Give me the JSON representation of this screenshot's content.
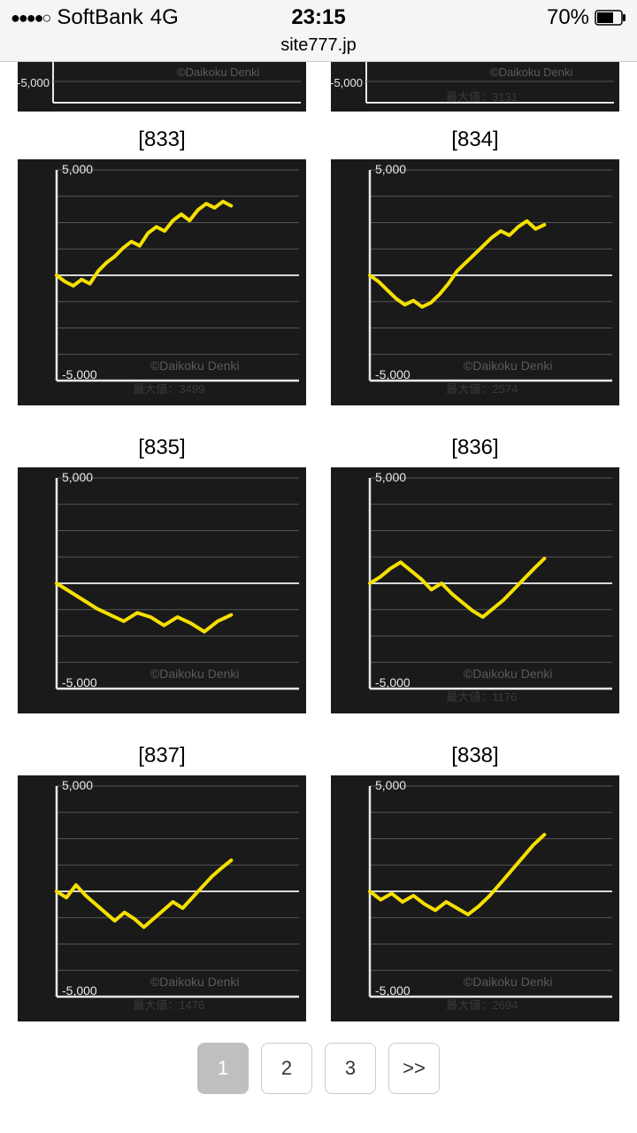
{
  "status_bar": {
    "signal_dots": "●●●●○",
    "carrier": "SoftBank",
    "network": "4G",
    "time": "23:15",
    "battery_pct": "70%"
  },
  "url": "site777.jp",
  "partial_top": {
    "left": {
      "watermark": "©Daikoku Denki",
      "y_min_label": "-5,000"
    },
    "right": {
      "watermark": "©Daikoku Denki",
      "y_min_label": "-5,000",
      "max_label": "最大値：3131"
    }
  },
  "chart_style": {
    "bg_color": "#1a1a1a",
    "line_color": "#f5e000",
    "line_width": 4,
    "axis_color": "#e8e8e8",
    "grid_color": "#555555",
    "zero_line_color": "#d8d8d8",
    "label_color": "#e8e8e8",
    "watermark_color": "#5a5a5a",
    "max_label_color": "#3a3a3a",
    "label_fontsize": 14,
    "y_max_label": "5,000",
    "y_min_label": "-5,000",
    "watermark": "©Daikoku Denki",
    "ylim": [
      -5000,
      5000
    ],
    "grid_lines_y": [
      -5000,
      -3750,
      -2500,
      -1250,
      0,
      1250,
      2500,
      3750,
      5000
    ]
  },
  "charts": [
    {
      "id": "[833]",
      "max_label": "最大値：3499",
      "values": [
        0,
        -300,
        -500,
        -200,
        -400,
        200,
        600,
        900,
        1300,
        1600,
        1400,
        2000,
        2300,
        2100,
        2600,
        2900,
        2600,
        3100,
        3400,
        3200,
        3499,
        3300
      ]
    },
    {
      "id": "[834]",
      "max_label": "最大値：2574",
      "values": [
        0,
        -300,
        -700,
        -1100,
        -1400,
        -1200,
        -1500,
        -1300,
        -900,
        -400,
        200,
        600,
        1000,
        1400,
        1800,
        2100,
        1900,
        2300,
        2574,
        2200,
        2400
      ]
    },
    {
      "id": "[835]",
      "max_label": "",
      "values": [
        0,
        -400,
        -800,
        -1200,
        -1500,
        -1800,
        -1400,
        -1600,
        -2000,
        -1600,
        -1900,
        -2300,
        -1800,
        -1500
      ]
    },
    {
      "id": "[836]",
      "max_label": "最大値：1176",
      "values": [
        0,
        300,
        700,
        1000,
        600,
        200,
        -300,
        0,
        -500,
        -900,
        -1300,
        -1600,
        -1200,
        -800,
        -300,
        200,
        700,
        1176
      ]
    },
    {
      "id": "[837]",
      "max_label": "最大値：1476",
      "values": [
        0,
        -300,
        300,
        -200,
        -600,
        -1000,
        -1400,
        -1000,
        -1300,
        -1700,
        -1300,
        -900,
        -500,
        -800,
        -300,
        200,
        700,
        1100,
        1476
      ]
    },
    {
      "id": "[838]",
      "max_label": "最大値：2694",
      "values": [
        0,
        -400,
        -100,
        -500,
        -200,
        -600,
        -900,
        -500,
        -800,
        -1100,
        -700,
        -200,
        400,
        1000,
        1600,
        2200,
        2694
      ]
    }
  ],
  "pagination": {
    "buttons": [
      "1",
      "2",
      "3",
      ">>"
    ],
    "active_index": 0
  }
}
